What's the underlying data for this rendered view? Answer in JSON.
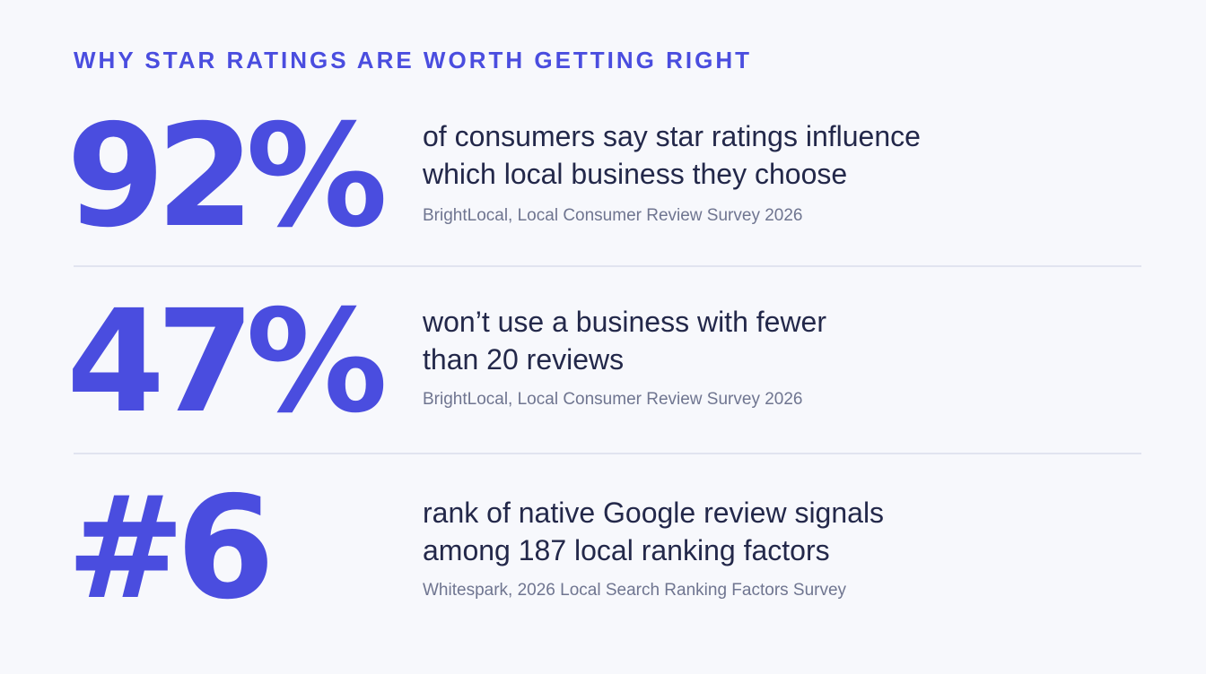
{
  "header": {
    "kicker": "WHY STAR RATINGS ARE WORTH GETTING RIGHT"
  },
  "stats": [
    {
      "value": "92%",
      "desc_lines": [
        "of consumers say star ratings influence",
        "which local business they choose"
      ],
      "source": "BrightLocal, Local Consumer Review Survey 2026"
    },
    {
      "value": "47%",
      "desc_lines": [
        "won’t use a business with fewer",
        "than 20 reviews"
      ],
      "source": "BrightLocal, Local Consumer Review Survey 2026"
    },
    {
      "value": "#6",
      "desc_lines": [
        "rank of native Google review signals",
        "among 187 local ranking factors"
      ],
      "source": "Whitespark, 2026 Local Search Ranking Factors Survey"
    }
  ],
  "colors": {
    "accent": "#4a4ddf",
    "text": "#23284a",
    "muted": "#6f7590",
    "divider": "#e1e4f0",
    "background": "#f7f8fc"
  }
}
